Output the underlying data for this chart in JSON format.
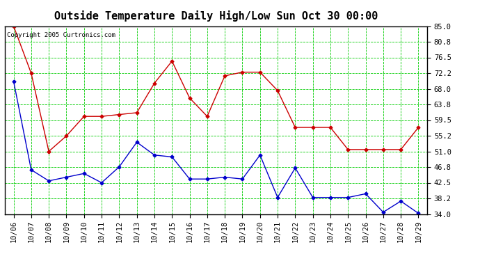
{
  "title": "Outside Temperature Daily High/Low Sun Oct 30 00:00",
  "copyright": "Copyright 2005 Curtronics.com",
  "x_labels": [
    "10/06",
    "10/07",
    "10/08",
    "10/09",
    "10/10",
    "10/11",
    "10/12",
    "10/13",
    "10/14",
    "10/15",
    "10/16",
    "10/17",
    "10/18",
    "10/19",
    "10/20",
    "10/21",
    "10/22",
    "10/23",
    "10/24",
    "10/25",
    "10/26",
    "10/27",
    "10/28",
    "10/29"
  ],
  "high_temps": [
    85.0,
    72.2,
    51.0,
    55.2,
    60.5,
    60.5,
    61.0,
    61.5,
    69.5,
    75.5,
    65.5,
    60.5,
    71.5,
    72.5,
    72.5,
    67.5,
    57.5,
    57.5,
    57.5,
    51.5,
    51.5,
    51.5,
    51.5,
    57.5
  ],
  "low_temps": [
    70.0,
    46.0,
    43.0,
    44.0,
    45.0,
    42.5,
    46.8,
    53.5,
    50.0,
    49.5,
    43.5,
    43.5,
    44.0,
    43.5,
    50.0,
    38.5,
    46.5,
    38.5,
    38.5,
    38.5,
    39.5,
    34.5,
    37.5,
    34.2
  ],
  "high_color": "#cc0000",
  "low_color": "#0000cc",
  "marker": "D",
  "marker_size": 2.5,
  "line_width": 1.0,
  "ylim": [
    34.0,
    85.0
  ],
  "yticks": [
    34.0,
    38.2,
    42.5,
    46.8,
    51.0,
    55.2,
    59.5,
    63.8,
    68.0,
    72.2,
    76.5,
    80.8,
    85.0
  ],
  "grid_color": "#00cc00",
  "grid_linestyle": "--",
  "grid_linewidth": 0.6,
  "bg_color": "#ffffff",
  "border_color": "#000000",
  "title_fontsize": 11,
  "tick_fontsize": 7.5,
  "copyright_fontsize": 6.5
}
